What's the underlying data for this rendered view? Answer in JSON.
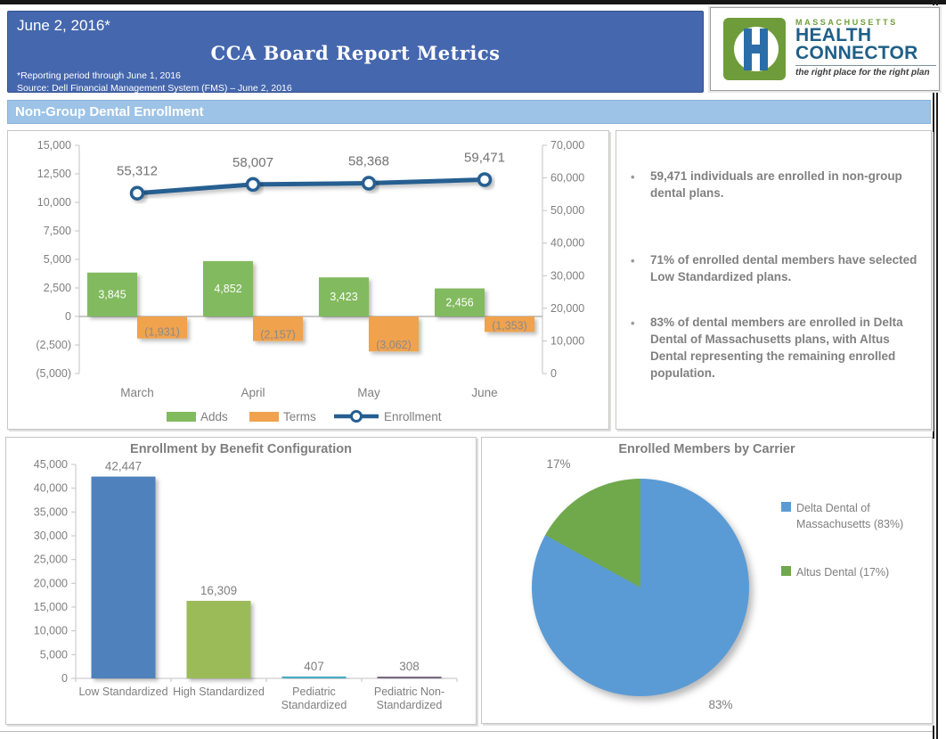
{
  "header": {
    "date": "June 2, 2016*",
    "title": "CCA Board Report Metrics",
    "footnote1": "*Reporting period through June 1, 2016",
    "footnote2": "Source: Dell Financial Management System (FMS) – June 2, 2016",
    "banner_color": "#4567ae"
  },
  "logo": {
    "region": "MASSACHUSETTS",
    "name_line1": "HEALTH",
    "name_line2": "CONNECTOR",
    "tagline": "the right place for the right plan",
    "monogram": "H",
    "green": "#6f9c3b",
    "blue": "#2b6da8"
  },
  "section": {
    "title": "Non-Group Dental Enrollment"
  },
  "notes": [
    "59,471 individuals are enrolled in non-group dental plans.",
    "71% of enrolled dental members have selected Low Standardized plans.",
    "83% of dental members are enrolled in Delta Dental of Massachusetts plans, with Altus Dental representing the remaining enrolled population."
  ],
  "bullet_glyph": "•",
  "chart_data": [
    {
      "type": "combo",
      "name": "non-group-dental-enrollment-trend",
      "categories": [
        "March",
        "April",
        "May",
        "June"
      ],
      "series": [
        {
          "name": "Adds",
          "kind": "bar",
          "color": "#82ba5e",
          "values": [
            3845,
            4852,
            3423,
            2456
          ],
          "labels": [
            "3,845",
            "4,852",
            "3,423",
            "2,456"
          ]
        },
        {
          "name": "Terms",
          "kind": "bar",
          "color": "#f0a24e",
          "values": [
            -1931,
            -2157,
            -3062,
            -1353
          ],
          "labels": [
            "(1,931)",
            "(2,157)",
            "(3,062)",
            "(1,353)"
          ]
        },
        {
          "name": "Enrollment",
          "kind": "line",
          "color": "#255e91",
          "values": [
            55312,
            58007,
            58368,
            59471
          ],
          "labels": [
            "55,312",
            "58,007",
            "58,368",
            "59,471"
          ]
        }
      ],
      "left_axis": {
        "min": -5000,
        "max": 15000,
        "tick_values": [
          15000,
          12500,
          10000,
          7500,
          5000,
          2500,
          0,
          -2500,
          -5000
        ],
        "tick_labels": [
          "15,000",
          "12,500",
          "10,000",
          "7,500",
          "5,000",
          "2,500",
          "0",
          "(2,500)",
          "(5,000)"
        ]
      },
      "right_axis": {
        "min": 0,
        "max": 70000,
        "tick_values": [
          70000,
          60000,
          50000,
          40000,
          30000,
          20000,
          10000,
          0
        ],
        "tick_labels": [
          "70,000",
          "60,000",
          "50,000",
          "40,000",
          "30,000",
          "20,000",
          "10,000",
          "0"
        ]
      },
      "legend_position": "bottom",
      "grid": false
    },
    {
      "type": "bar",
      "title": "Enrollment by Benefit Configuration",
      "categories": [
        [
          "Low Standardized"
        ],
        [
          "High Standardized"
        ],
        [
          "Pediatric",
          "Standardized"
        ],
        [
          "Pediatric Non-",
          "Standardized"
        ]
      ],
      "values": [
        42447,
        16309,
        407,
        308
      ],
      "value_labels": [
        "42,447",
        "16,309",
        "407",
        "308"
      ],
      "bar_colors": [
        "#4f81bd",
        "#9bbb59",
        "#4bacc6",
        "#7a6a84"
      ],
      "y_axis": {
        "min": 0,
        "max": 45000,
        "tick_values": [
          45000,
          40000,
          35000,
          30000,
          25000,
          20000,
          15000,
          10000,
          5000,
          0
        ],
        "tick_labels": [
          "45,000",
          "40,000",
          "35,000",
          "30,000",
          "25,000",
          "20,000",
          "15,000",
          "10,000",
          "5,000",
          "0"
        ]
      },
      "grid": false
    },
    {
      "type": "pie",
      "title": "Enrolled Members by Carrier",
      "slices": [
        {
          "name": "Delta Dental of Massachusetts",
          "value": 83,
          "color": "#5b9bd5",
          "callout": "83%",
          "legend_lines": [
            "Delta Dental of",
            "Massachusetts (83%)"
          ]
        },
        {
          "name": "Altus Dental",
          "value": 17,
          "color": "#70a84c",
          "callout": "17%",
          "legend_lines": [
            "Altus Dental (17%)"
          ]
        }
      ],
      "legend_position": "right"
    }
  ]
}
